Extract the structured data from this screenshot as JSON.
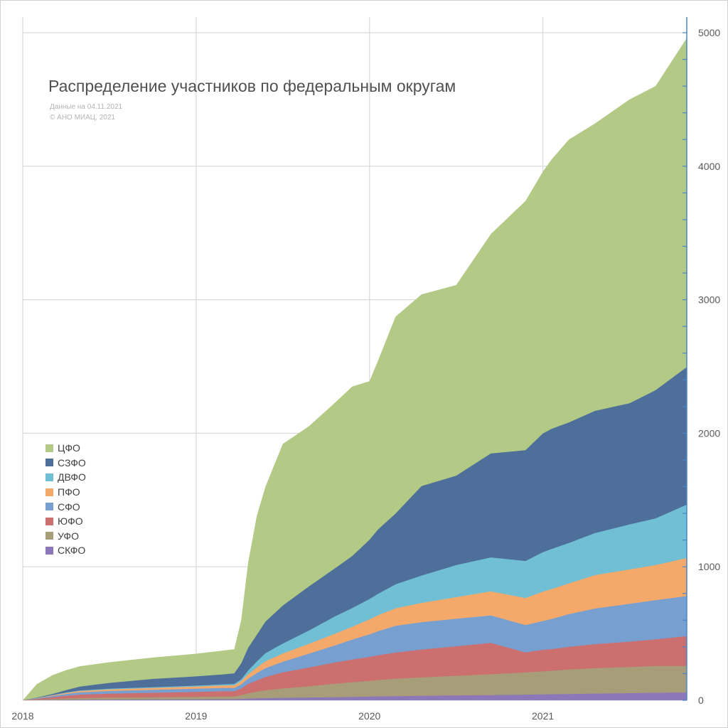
{
  "chart_data": {
    "type": "area",
    "stacked": true,
    "title": "Распределение участников по федеральным округам",
    "subtitle_lines": [
      "Данные на 04.11.2021",
      "© АНО МИАЦ, 2021"
    ],
    "x_tick_labels": [
      "2018",
      "2019",
      "2020",
      "2021"
    ],
    "y_tick_labels": [
      "0",
      "1000",
      "2000",
      "3000",
      "4000",
      "5000"
    ],
    "xlim": [
      2018.0,
      2021.83
    ],
    "ylim": [
      0,
      5000
    ],
    "y_axis_side": "right",
    "grid": true,
    "legend_position": "left",
    "x": [
      2018.0,
      2018.08,
      2018.17,
      2018.25,
      2018.33,
      2018.5,
      2018.75,
      2019.0,
      2019.15,
      2019.22,
      2019.26,
      2019.3,
      2019.35,
      2019.4,
      2019.5,
      2019.65,
      2019.8,
      2019.9,
      2020.0,
      2020.05,
      2020.15,
      2020.3,
      2020.5,
      2020.7,
      2020.9,
      2021.0,
      2021.05,
      2021.15,
      2021.3,
      2021.5,
      2021.65,
      2021.83
    ],
    "series": [
      {
        "name": "СКФО",
        "color": "#8c77b8",
        "values": [
          0,
          1,
          2,
          3,
          4,
          5,
          6,
          7,
          8,
          8,
          10,
          12,
          14,
          16,
          18,
          21,
          23,
          25,
          27,
          29,
          31,
          33,
          36,
          39,
          42,
          44,
          45,
          47,
          50,
          53,
          56,
          58
        ]
      },
      {
        "name": "УФО",
        "color": "#a89d79",
        "values": [
          0,
          3,
          7,
          10,
          12,
          14,
          16,
          18,
          20,
          20,
          28,
          40,
          50,
          58,
          70,
          84,
          100,
          110,
          118,
          122,
          130,
          138,
          147,
          156,
          166,
          172,
          176,
          183,
          190,
          196,
          200,
          198
        ]
      },
      {
        "name": "ЮФО",
        "color": "#cc6f6f",
        "values": [
          0,
          6,
          14,
          20,
          26,
          30,
          34,
          37,
          39,
          39,
          50,
          70,
          84,
          100,
          120,
          140,
          160,
          170,
          180,
          186,
          196,
          208,
          221,
          234,
          150,
          162,
          162,
          170,
          180,
          190,
          200,
          224
        ]
      },
      {
        "name": "СФО",
        "color": "#779fd0",
        "values": [
          0,
          4,
          9,
          14,
          17,
          20,
          22,
          24,
          25,
          25,
          30,
          40,
          55,
          66,
          80,
          104,
          127,
          149,
          168,
          180,
          200,
          205,
          206,
          206,
          205,
          215,
          225,
          245,
          267,
          283,
          293,
          300
        ]
      },
      {
        "name": "ПФО",
        "color": "#f4a96b",
        "values": [
          0,
          2,
          5,
          8,
          10,
          12,
          14,
          16,
          18,
          20,
          24,
          32,
          42,
          52,
          62,
          73,
          88,
          96,
          113,
          120,
          131,
          145,
          162,
          180,
          202,
          220,
          225,
          230,
          250,
          258,
          263,
          285
        ]
      },
      {
        "name": "ДВФО",
        "color": "#70bfd5",
        "values": [
          0,
          1,
          2,
          3,
          4,
          5,
          6,
          7,
          8,
          10,
          14,
          28,
          45,
          60,
          75,
          100,
          130,
          140,
          152,
          160,
          180,
          205,
          240,
          255,
          278,
          296,
          300,
          303,
          315,
          337,
          350,
          400
        ]
      },
      {
        "name": "СЗФО",
        "color": "#4e6f99",
        "values": [
          0,
          3,
          8,
          18,
          30,
          44,
          62,
          70,
          75,
          80,
          120,
          170,
          200,
          237,
          285,
          330,
          360,
          390,
          444,
          483,
          530,
          670,
          670,
          778,
          830,
          889,
          900,
          903,
          915,
          907,
          960,
          1030
        ]
      },
      {
        "name": "ЦФО",
        "color": "#b2ca85",
        "values": [
          0,
          100,
          140,
          150,
          152,
          155,
          160,
          170,
          178,
          180,
          325,
          638,
          890,
          1011,
          1210,
          1200,
          1240,
          1270,
          1188,
          1265,
          1475,
          1436,
          1428,
          1644,
          1867,
          1962,
          2017,
          2119,
          2153,
          2276,
          2278,
          2465
        ]
      }
    ]
  },
  "colors": {
    "grid": "#d9d9d9",
    "y_axis": "#4a86c8",
    "tick_text": "#595959"
  }
}
